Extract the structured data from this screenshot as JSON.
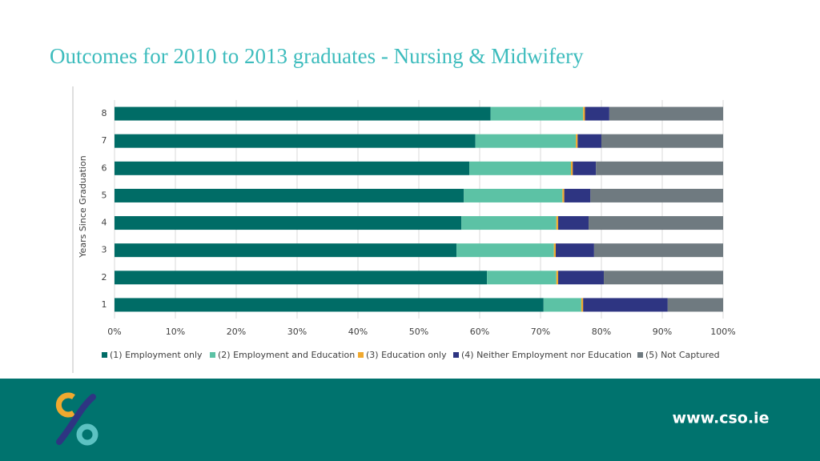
{
  "chart_data": {
    "type": "stacked-bar-horizontal",
    "title": "Outcomes for 2010 to 2013 graduates - Nursing & Midwifery",
    "y_label": "Years Since Graduation",
    "categories": [
      "1",
      "2",
      "3",
      "4",
      "5",
      "6",
      "7",
      "8"
    ],
    "series": [
      {
        "name": "(1) Employment only",
        "color": "#006c66",
        "values": [
          70.5,
          61.2,
          56.2,
          57.0,
          57.4,
          58.3,
          59.3,
          61.8
        ]
      },
      {
        "name": "(2) Employment and Education",
        "color": "#5cc2a5",
        "values": [
          6.2,
          11.4,
          16.0,
          15.6,
          16.2,
          16.7,
          16.5,
          15.2
        ]
      },
      {
        "name": "(3) Education only",
        "color": "#f0a92f",
        "values": [
          0.3,
          0.3,
          0.3,
          0.3,
          0.3,
          0.3,
          0.3,
          0.3
        ]
      },
      {
        "name": "(4) Neither Employment nor Education",
        "color": "#2e3582",
        "values": [
          13.9,
          7.5,
          6.3,
          5.0,
          4.3,
          3.8,
          3.9,
          4.0
        ]
      },
      {
        "name": "(5) Not Captured",
        "color": "#6f7a80",
        "values": [
          9.1,
          19.6,
          21.2,
          22.1,
          21.8,
          20.9,
          20.0,
          18.7
        ]
      }
    ],
    "xlim": [
      0,
      100
    ],
    "xticks": [
      {
        "value": 0,
        "label": "0%"
      },
      {
        "value": 10,
        "label": "10%"
      },
      {
        "value": 20,
        "label": "20%"
      },
      {
        "value": 30,
        "label": "30%"
      },
      {
        "value": 40,
        "label": "40%"
      },
      {
        "value": 50,
        "label": "50%"
      },
      {
        "value": 60,
        "label": "60%"
      },
      {
        "value": 70,
        "label": "70%"
      },
      {
        "value": 80,
        "label": "80%"
      },
      {
        "value": 90,
        "label": "90%"
      },
      {
        "value": 100,
        "label": "100%"
      }
    ],
    "grid": true,
    "legend": "bottom"
  },
  "footer": {
    "url": "www.cso.ie"
  }
}
